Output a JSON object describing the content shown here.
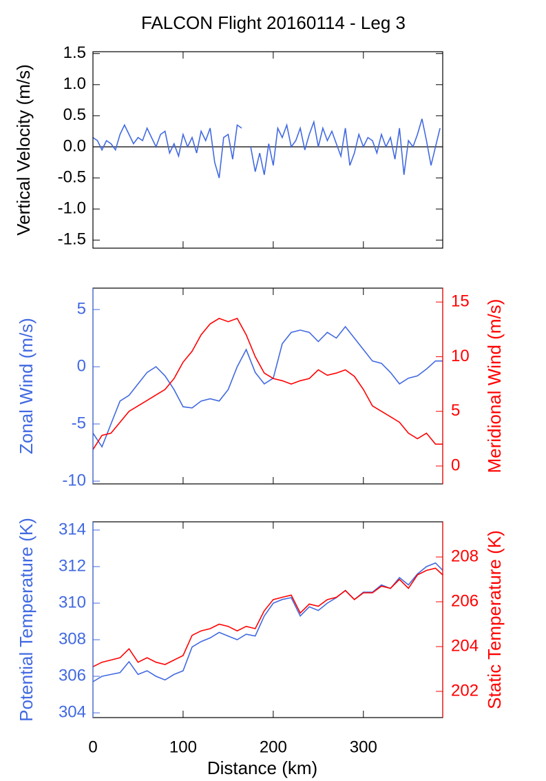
{
  "chart_data": [
    {
      "type": "line",
      "title": "FALCON Flight 20160114 - Leg 3",
      "ylabel": "Vertical Velocity (m/s)",
      "x": [
        0,
        5,
        10,
        15,
        20,
        25,
        30,
        35,
        40,
        45,
        50,
        55,
        60,
        65,
        70,
        75,
        80,
        85,
        90,
        95,
        100,
        105,
        110,
        115,
        120,
        125,
        130,
        135,
        140,
        145,
        150,
        155,
        160,
        165,
        170,
        175,
        180,
        185,
        190,
        195,
        200,
        205,
        210,
        215,
        220,
        225,
        230,
        235,
        240,
        245,
        250,
        255,
        260,
        265,
        270,
        275,
        280,
        285,
        290,
        295,
        300,
        305,
        310,
        315,
        320,
        325,
        330,
        335,
        340,
        345,
        350,
        355,
        360,
        365,
        370,
        375,
        380,
        385
      ],
      "series": [
        {
          "name": "Vertical Velocity",
          "color": "#4169e1",
          "values": [
            0.15,
            0.1,
            -0.05,
            0.1,
            0.05,
            -0.05,
            0.2,
            0.35,
            0.2,
            0.05,
            0.15,
            0.1,
            0.3,
            0.15,
            0.0,
            0.2,
            0.25,
            -0.1,
            0.05,
            -0.15,
            0.2,
            0.0,
            0.15,
            -0.1,
            0.25,
            0.1,
            0.3,
            -0.25,
            -0.5,
            0.15,
            0.2,
            -0.2,
            0.35,
            0.3,
            null,
            0.0,
            -0.4,
            -0.1,
            -0.45,
            0.05,
            -0.3,
            0.3,
            0.15,
            0.35,
            0.0,
            0.1,
            0.3,
            -0.05,
            0.2,
            0.4,
            0.0,
            0.3,
            0.1,
            0.25,
            0.05,
            -0.15,
            0.3,
            -0.3,
            -0.1,
            0.2,
            0.0,
            0.15,
            0.1,
            -0.1,
            0.2,
            0.0,
            0.15,
            -0.2,
            0.3,
            -0.45,
            0.1,
            0.0,
            0.2,
            0.45,
            0.1,
            -0.3,
            0.0,
            0.3
          ]
        }
      ],
      "hline": 0,
      "xlim": [
        0,
        388
      ],
      "xticks": [
        0,
        100,
        200,
        300
      ],
      "ylim": [
        -1.63,
        1.53
      ],
      "yticks": [
        -1.5,
        {
          "value": -1,
          "label": "-1.0"
        },
        -0.5,
        {
          "value": 0,
          "label": "0.0"
        },
        0.5,
        {
          "value": 1,
          "label": "1.0"
        },
        1.5
      ]
    },
    {
      "type": "line",
      "ylabel": "Zonal Wind (m/s)",
      "y2label": "Meridional Wind (m/s)",
      "ylabel_color": "#4169e1",
      "y2label_color": "#ff0000",
      "x": [
        0,
        10,
        20,
        30,
        40,
        50,
        60,
        70,
        80,
        90,
        100,
        110,
        120,
        130,
        140,
        150,
        160,
        170,
        180,
        190,
        200,
        210,
        220,
        230,
        240,
        250,
        260,
        270,
        280,
        290,
        300,
        310,
        320,
        330,
        340,
        350,
        360,
        370,
        380,
        388
      ],
      "series": [
        {
          "name": "Zonal Wind",
          "color": "#4169e1",
          "values": [
            -5.8,
            -7,
            -5,
            -3,
            -2.5,
            -1.5,
            -0.5,
            0,
            -0.8,
            -2,
            -3.5,
            -3.6,
            -3,
            -2.8,
            -3,
            -2,
            0,
            1.5,
            -0.5,
            -1.5,
            -1,
            2,
            3,
            3.2,
            3,
            2.2,
            3,
            2.5,
            3.5,
            2.5,
            1.5,
            0.5,
            0.3,
            -0.5,
            -1.5,
            -1,
            -0.8,
            -0.2,
            0.5,
            0.5
          ]
        },
        {
          "name": "Meridional Wind",
          "color": "#ff0000",
          "axis": "y2",
          "values": [
            1.5,
            2.8,
            3,
            4,
            5,
            5.5,
            6,
            6.5,
            7,
            8,
            9.5,
            10.5,
            12,
            13,
            13.5,
            13.2,
            13.5,
            12,
            10,
            8.5,
            8,
            7.8,
            7.5,
            7.8,
            8,
            8.8,
            8.3,
            8.5,
            8.8,
            8.2,
            7,
            5.5,
            5,
            4.5,
            4,
            3,
            2.5,
            3,
            2,
            2
          ]
        }
      ],
      "xlim": [
        0,
        388
      ],
      "xticks": [
        0,
        100,
        200,
        300
      ],
      "ylim": [
        -10.24,
        6.87
      ],
      "yticks": [
        -10,
        -5,
        0,
        5
      ],
      "y2lim": [
        -1.64,
        16.27
      ],
      "y2ticks": [
        0,
        5,
        10,
        15
      ]
    },
    {
      "type": "line",
      "ylabel": "Potential Temperature (K)",
      "y2label": "Static Temperature (K)",
      "xlabel": "Distance (km)",
      "ylabel_color": "#4169e1",
      "y2label_color": "#ff0000",
      "x": [
        0,
        10,
        20,
        30,
        40,
        50,
        60,
        70,
        80,
        90,
        100,
        110,
        120,
        130,
        140,
        150,
        160,
        170,
        180,
        190,
        200,
        210,
        220,
        230,
        240,
        250,
        260,
        270,
        280,
        290,
        300,
        310,
        320,
        330,
        340,
        350,
        360,
        370,
        380,
        388
      ],
      "series": [
        {
          "name": "Potential Temperature",
          "color": "#4169e1",
          "values": [
            305.7,
            306,
            306.1,
            306.2,
            306.8,
            306.1,
            306.3,
            306,
            305.8,
            306.1,
            306.3,
            307.6,
            307.9,
            308.1,
            308.4,
            308.2,
            308,
            308.3,
            308.2,
            309.3,
            310,
            310.2,
            310.3,
            309.3,
            309.8,
            309.6,
            310,
            310.3,
            310.7,
            310.2,
            310.6,
            310.6,
            311,
            310.8,
            311.4,
            311,
            311.6,
            312,
            312.2,
            311.8
          ]
        },
        {
          "name": "Static Temperature",
          "color": "#ff0000",
          "axis": "y2",
          "values": [
            203.1,
            203.3,
            203.4,
            203.5,
            203.9,
            203.3,
            203.5,
            203.3,
            203.2,
            203.4,
            203.6,
            204.5,
            204.7,
            204.8,
            205,
            204.9,
            204.7,
            204.9,
            204.8,
            205.6,
            206.1,
            206.2,
            206.3,
            205.5,
            205.9,
            205.8,
            206.1,
            206.2,
            206.5,
            206.1,
            206.4,
            206.4,
            206.7,
            206.6,
            207,
            206.6,
            207.2,
            207.4,
            207.5,
            207.2
          ]
        }
      ],
      "xlim": [
        0,
        388
      ],
      "xticks": [
        0,
        100,
        200,
        300
      ],
      "ylim": [
        303.74,
        314.45
      ],
      "yticks": [
        304,
        306,
        308,
        310,
        312,
        314
      ],
      "y2lim": [
        200.83,
        209.57
      ],
      "y2ticks": [
        202,
        204,
        206,
        208
      ]
    }
  ]
}
